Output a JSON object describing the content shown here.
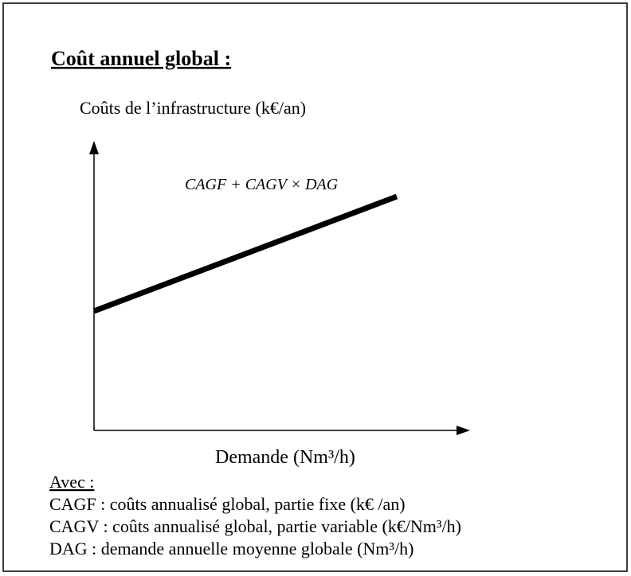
{
  "header": {
    "title": "Coût annuel global :"
  },
  "diagram": {
    "y_axis_label": "Coûts de l’infrastructure (k€/an)",
    "formula": "CAGF + CAGV × DAG",
    "x_axis_label": "Demande (Nm³/h)"
  },
  "legend": {
    "heading": "Avec :",
    "items": [
      "CAGF : coûts annualisé global, partie fixe (k€ /an)",
      "CAGV : coûts annualisé global, partie variable (k€/Nm³/h)",
      "DAG : demande annuelle moyenne globale (Nm³/h)"
    ]
  }
}
